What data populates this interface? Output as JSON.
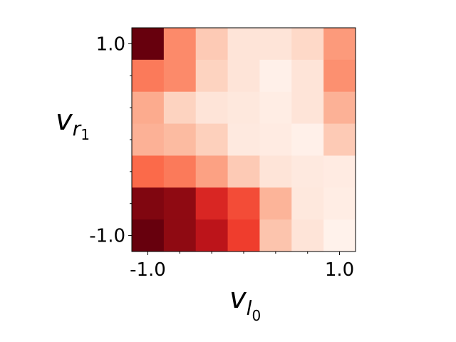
{
  "chart_data": {
    "type": "heatmap",
    "cmap": "Reds",
    "values": [
      [
        1.0,
        0.4,
        0.2,
        0.1,
        0.1,
        0.15,
        0.35
      ],
      [
        0.45,
        0.4,
        0.17,
        0.1,
        0.03,
        0.1,
        0.38
      ],
      [
        0.3,
        0.17,
        0.1,
        0.08,
        0.05,
        0.1,
        0.28
      ],
      [
        0.28,
        0.25,
        0.18,
        0.07,
        0.06,
        0.03,
        0.2
      ],
      [
        0.5,
        0.45,
        0.33,
        0.2,
        0.1,
        0.07,
        0.06
      ],
      [
        0.95,
        0.92,
        0.7,
        0.58,
        0.27,
        0.08,
        0.05
      ],
      [
        1.0,
        0.92,
        0.8,
        0.62,
        0.22,
        0.1,
        0.02
      ]
    ],
    "xlim": [
      -1.1667,
      1.1667
    ],
    "ylim": [
      1.1667,
      -1.1667
    ],
    "xticks": [
      {
        "value": -1,
        "label": "-1.0"
      },
      {
        "value": 1,
        "label": "1.0"
      }
    ],
    "yticks": [
      {
        "value": -1,
        "label": "-1.0"
      },
      {
        "value": 1,
        "label": "1.0"
      }
    ],
    "xminorticks": [
      -0.6667,
      -0.3333,
      0,
      0.3333,
      0.6667
    ],
    "yminorticks": [
      -0.6667,
      -0.3333,
      0,
      0.3333,
      0.6667
    ],
    "xlabel": {
      "symbol": "v",
      "subscript": "l",
      "sub_subscript": "0"
    },
    "ylabel": {
      "symbol": "v",
      "subscript": "r",
      "sub_subscript": "1"
    }
  }
}
